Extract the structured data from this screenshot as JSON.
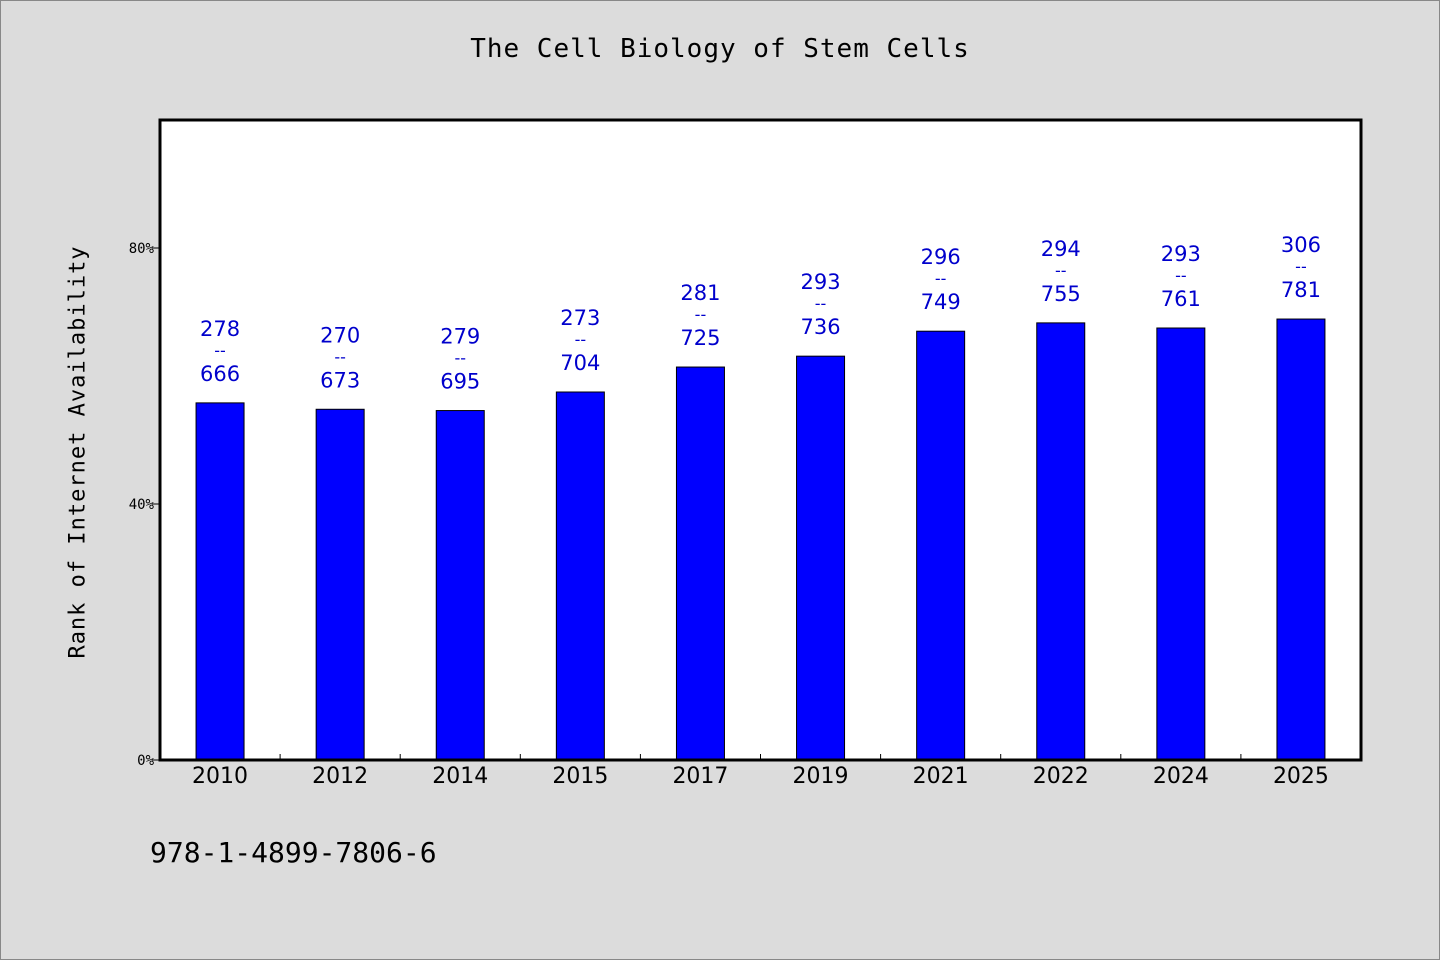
{
  "chart_data": {
    "type": "bar",
    "title": "The Cell Biology of Stem Cells",
    "xlabel": "",
    "ylabel": "Rank of Internet Availability",
    "categories": [
      "2010",
      "2012",
      "2014",
      "2015",
      "2017",
      "2019",
      "2021",
      "2022",
      "2024",
      "2025"
    ],
    "values": [
      55.8,
      54.8,
      54.6,
      57.5,
      61.4,
      63.1,
      67.0,
      68.3,
      67.5,
      68.9
    ],
    "value_unit": "%",
    "data_labels": [
      {
        "top": "278",
        "sep": "--",
        "bottom": "666"
      },
      {
        "top": "270",
        "sep": "--",
        "bottom": "673"
      },
      {
        "top": "279",
        "sep": "--",
        "bottom": "695"
      },
      {
        "top": "273",
        "sep": "--",
        "bottom": "704"
      },
      {
        "top": "281",
        "sep": "--",
        "bottom": "725"
      },
      {
        "top": "293",
        "sep": "--",
        "bottom": "736"
      },
      {
        "top": "296",
        "sep": "--",
        "bottom": "749"
      },
      {
        "top": "294",
        "sep": "--",
        "bottom": "755"
      },
      {
        "top": "293",
        "sep": "--",
        "bottom": "761"
      },
      {
        "top": "306",
        "sep": "--",
        "bottom": "781"
      }
    ],
    "ylim": [
      0,
      100
    ],
    "yticks": [
      0,
      40,
      80
    ],
    "ytick_labels": [
      "0%",
      "40%",
      "80%"
    ],
    "grid": false,
    "legend": "none",
    "colors": {
      "bar": "#0000ff",
      "label": "#0000cc",
      "background": "#dcdcdc",
      "plot": "#ffffff"
    }
  },
  "footer": {
    "isbn": "978-1-4899-7806-6"
  }
}
